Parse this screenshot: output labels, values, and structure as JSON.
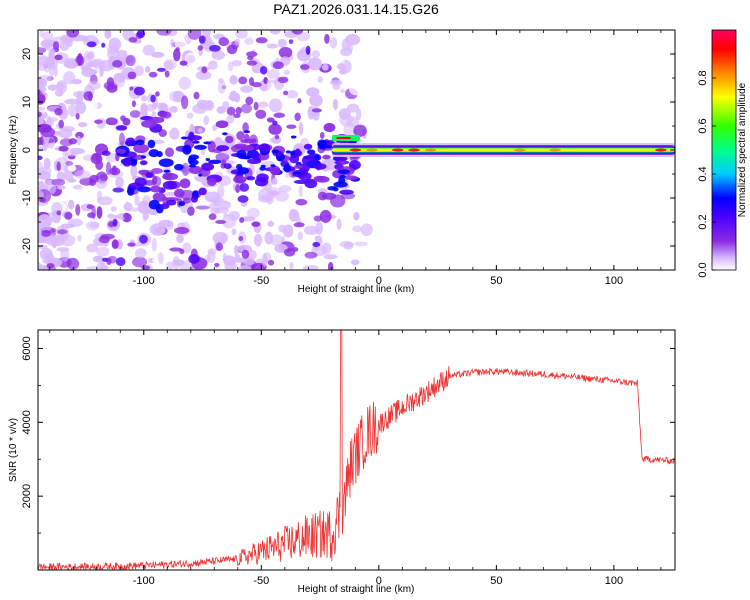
{
  "title": "PAZ1.2026.031.14.15.G26",
  "chart_data": [
    {
      "type": "heatmap",
      "xlabel": "Height of straight line (km)",
      "ylabel": "Frequency (Hz)",
      "xlim": [
        -145,
        126
      ],
      "ylim": [
        -25,
        25
      ],
      "xticks": [
        -100,
        -50,
        0,
        50,
        100
      ],
      "yticks": [
        -20,
        -10,
        0,
        10,
        20
      ],
      "colorbar": {
        "label": "Normalized spectral amplitude",
        "range": [
          0,
          1
        ],
        "ticks": [
          "0.0",
          "0.2",
          "0.4",
          "0.6",
          "0.8"
        ],
        "tick_values": [
          0,
          0.2,
          0.4,
          0.6,
          0.8
        ],
        "colors": [
          "#ffffff",
          "#d8b8ff",
          "#8a2be2",
          "#4b00ff",
          "#0000ff",
          "#00ccff",
          "#00ff66",
          "#66ff00",
          "#ffff00",
          "#ff8800",
          "#ff0000",
          "#ff0066"
        ]
      },
      "features": {
        "noise_region_x": [
          -145,
          -20
        ],
        "scatter_blobs_x": [
          -110,
          -10
        ],
        "signal_start_x": -20,
        "signal_end_x": 126,
        "signal_frequency_hz": 0,
        "signal_amplitude_peak": 0.95
      }
    },
    {
      "type": "line",
      "xlabel": "Height of straight line (km)",
      "ylabel": "SNR (10 * v/v)",
      "xlim": [
        -145,
        126
      ],
      "ylim": [
        0,
        6500
      ],
      "xticks": [
        -100,
        -50,
        0,
        50,
        100
      ],
      "yticks": [
        2000,
        4000,
        6000
      ],
      "color": "#ee3333",
      "series": [
        {
          "name": "SNR",
          "x": [
            -145,
            -120,
            -100,
            -80,
            -60,
            -50,
            -40,
            -30,
            -20,
            -15,
            -12,
            -10,
            -5,
            0,
            10,
            20,
            30,
            40,
            50,
            60,
            70,
            80,
            90,
            100,
            110,
            112,
            115,
            126
          ],
          "values": [
            80,
            90,
            120,
            180,
            300,
            500,
            700,
            900,
            1000,
            1800,
            2800,
            3100,
            3700,
            3950,
            4400,
            4800,
            5250,
            5350,
            5380,
            5340,
            5300,
            5250,
            5180,
            5120,
            5050,
            3000,
            3000,
            2950
          ]
        }
      ],
      "spike": {
        "x": -16,
        "y": 6500
      }
    }
  ]
}
